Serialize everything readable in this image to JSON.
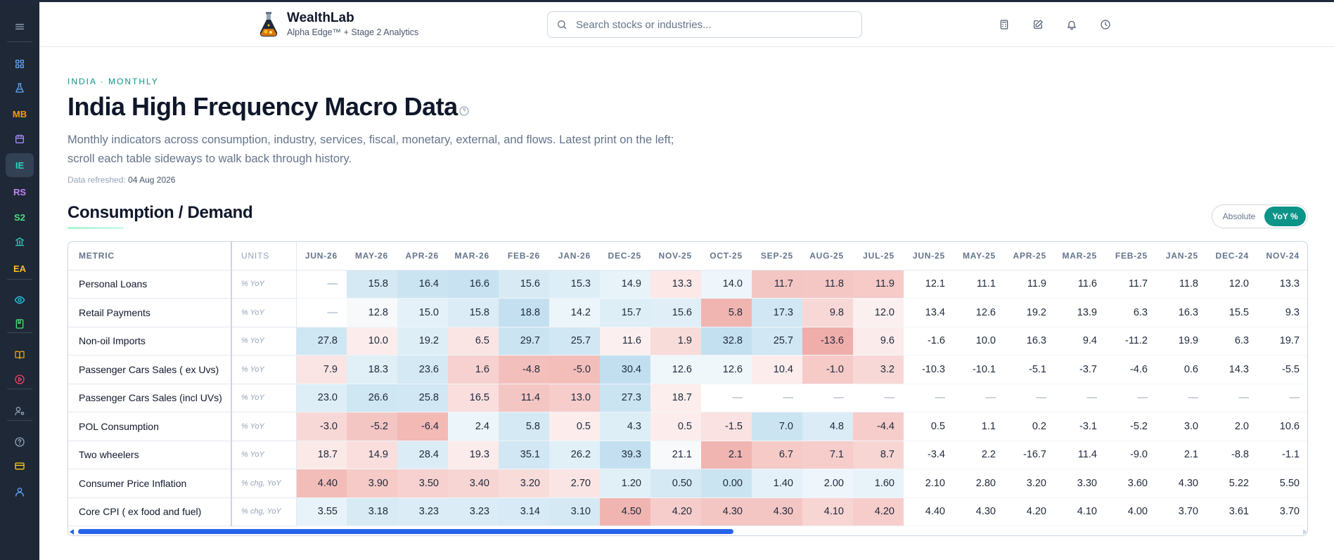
{
  "app": {
    "name": "WealthLab",
    "tagline": "Alpha Edge™ + Stage 2 Analytics"
  },
  "search": {
    "placeholder": "Search stocks or industries..."
  },
  "sidebar": {
    "items": [
      {
        "name": "menu",
        "label": "",
        "icon": "hamburger-icon",
        "color": "#94a3b8"
      },
      {
        "name": "dashboard",
        "label": "",
        "icon": "grid-icon",
        "color": "#60a5fa"
      },
      {
        "name": "lab",
        "label": "",
        "icon": "flask-icon",
        "color": "#60a5fa"
      },
      {
        "name": "mb",
        "label": "MB",
        "color": "#f59e0b"
      },
      {
        "name": "calendar",
        "label": "",
        "icon": "calendar-icon",
        "color": "#a78bfa"
      },
      {
        "name": "ie",
        "label": "IE",
        "color": "#2dd4bf",
        "active": true
      },
      {
        "name": "rs",
        "label": "RS",
        "color": "#c084fc"
      },
      {
        "name": "s2",
        "label": "S2",
        "color": "#4ade80"
      },
      {
        "name": "bank",
        "label": "",
        "icon": "bank-icon",
        "color": "#2dd4bf"
      },
      {
        "name": "ea",
        "label": "EA",
        "color": "#fbbf24"
      },
      {
        "name": "watch",
        "label": "",
        "icon": "eye-icon",
        "color": "#22d3ee"
      },
      {
        "name": "journal",
        "label": "",
        "icon": "book-icon",
        "color": "#4ade80"
      },
      {
        "name": "learn",
        "label": "",
        "icon": "open-book-icon",
        "color": "#f59e0b"
      },
      {
        "name": "video",
        "label": "",
        "icon": "play-circle-icon",
        "color": "#f43f5e"
      },
      {
        "name": "admin",
        "label": "",
        "icon": "user-gear-icon",
        "color": "#94a3b8"
      },
      {
        "name": "help",
        "label": "",
        "icon": "help-circle-icon",
        "color": "#94a3b8"
      },
      {
        "name": "billing",
        "label": "",
        "icon": "card-icon",
        "color": "#facc15"
      },
      {
        "name": "profile",
        "label": "",
        "icon": "user-icon",
        "color": "#60a5fa"
      }
    ]
  },
  "page": {
    "kicker": "INDIA · MONTHLY",
    "title": "India High Frequency Macro Data",
    "description": "Monthly indicators across consumption, industry, services, fiscal, monetary, external, and flows. Latest print on the left; scroll each table sideways to walk back through history.",
    "refreshed_label": "Data refreshed:",
    "refreshed_value": "04 Aug 2026"
  },
  "section": {
    "title": "Consumption / Demand",
    "toggle": {
      "absolute": "Absolute",
      "yoy": "YoY %",
      "selected": "yoy"
    }
  },
  "table": {
    "metric_header": "METRIC",
    "units_header": "UNITS",
    "months": [
      "JUN-26",
      "MAY-26",
      "APR-26",
      "MAR-26",
      "FEB-26",
      "JAN-26",
      "DEC-25",
      "NOV-25",
      "OCT-25",
      "SEP-25",
      "AUG-25",
      "JUL-25",
      "JUN-25",
      "MAY-25",
      "APR-25",
      "MAR-25",
      "FEB-25",
      "JAN-25",
      "DEC-24",
      "NOV-24"
    ],
    "heat_cols": 12,
    "rows": [
      {
        "metric": "Personal Loans",
        "units": "% YoY",
        "values": [
          "—",
          "15.8",
          "16.4",
          "16.6",
          "15.6",
          "15.3",
          "14.9",
          "13.3",
          "14.0",
          "11.7",
          "11.8",
          "11.9",
          "12.1",
          "11.1",
          "11.9",
          "11.6",
          "11.7",
          "11.8",
          "12.0",
          "13.3"
        ],
        "heat": [
          null,
          -0.45,
          -0.6,
          -0.65,
          -0.4,
          -0.3,
          -0.15,
          0.12,
          -0.05,
          0.6,
          0.58,
          0.55
        ]
      },
      {
        "metric": "Retail Payments",
        "units": "% YoY",
        "values": [
          "—",
          "12.8",
          "15.0",
          "15.8",
          "18.8",
          "14.2",
          "15.7",
          "15.6",
          "5.8",
          "17.3",
          "9.8",
          "12.0",
          "13.4",
          "12.6",
          "19.2",
          "13.9",
          "6.3",
          "16.3",
          "15.5",
          "9.3"
        ],
        "heat": [
          null,
          0.0,
          -0.2,
          -0.35,
          -0.7,
          -0.1,
          -0.3,
          -0.28,
          0.85,
          -0.5,
          0.35,
          0.02
        ]
      },
      {
        "metric": "Non-oil Imports",
        "units": "% YoY",
        "values": [
          "27.8",
          "10.0",
          "19.2",
          "6.5",
          "29.7",
          "25.7",
          "11.6",
          "1.9",
          "32.8",
          "25.7",
          "-13.6",
          "9.6",
          "-1.6",
          "10.0",
          "16.3",
          "9.4",
          "-11.2",
          "19.9",
          "6.3",
          "19.7"
        ],
        "heat": [
          -0.55,
          0.05,
          -0.3,
          0.15,
          -0.6,
          -0.5,
          0.02,
          0.3,
          -0.72,
          -0.5,
          0.95,
          0.08
        ]
      },
      {
        "metric": "Passenger Cars Sales ( ex Uvs)",
        "units": "% YoY",
        "values": [
          "7.9",
          "18.3",
          "23.6",
          "1.6",
          "-4.8",
          "-5.0",
          "30.4",
          "12.6",
          "12.6",
          "10.4",
          "-1.0",
          "3.2",
          "-10.3",
          "-10.1",
          "-5.1",
          "-3.7",
          "-4.6",
          "0.6",
          "14.3",
          "-5.5"
        ],
        "heat": [
          0.15,
          -0.25,
          -0.45,
          0.45,
          0.7,
          0.72,
          -0.75,
          -0.03,
          -0.03,
          0.05,
          0.55,
          0.35
        ]
      },
      {
        "metric": "Passenger Cars Sales (incl UVs)",
        "units": "% YoY",
        "values": [
          "23.0",
          "26.6",
          "25.8",
          "16.5",
          "11.4",
          "13.0",
          "27.3",
          "18.7",
          "—",
          "—",
          "—",
          "—",
          "—",
          "—",
          "—",
          "—",
          "—",
          "—",
          "—",
          "—"
        ],
        "heat": [
          -0.3,
          -0.55,
          -0.5,
          0.25,
          0.6,
          0.5,
          -0.6,
          0.03,
          null,
          null,
          null,
          null
        ]
      },
      {
        "metric": "POL Consumption",
        "units": "% YoY",
        "values": [
          "-3.0",
          "-5.2",
          "-6.4",
          "2.4",
          "5.8",
          "0.5",
          "4.3",
          "0.5",
          "-1.5",
          "7.0",
          "4.8",
          "-4.4",
          "0.5",
          "1.1",
          "0.2",
          "-3.1",
          "-5.2",
          "3.0",
          "2.0",
          "10.6"
        ],
        "heat": [
          0.35,
          0.6,
          0.8,
          -0.1,
          -0.45,
          0.05,
          -0.3,
          0.05,
          0.2,
          -0.6,
          -0.35,
          0.5
        ]
      },
      {
        "metric": "Two wheelers",
        "units": "% YoY",
        "values": [
          "18.7",
          "14.9",
          "28.4",
          "19.3",
          "35.1",
          "26.2",
          "39.3",
          "21.1",
          "2.1",
          "6.7",
          "7.1",
          "8.7",
          "-3.4",
          "2.2",
          "-16.7",
          "11.4",
          "-9.0",
          "2.1",
          "-8.8",
          "-1.1"
        ],
        "heat": [
          0.1,
          0.25,
          -0.35,
          0.08,
          -0.5,
          -0.25,
          -0.7,
          0.0,
          0.85,
          0.55,
          0.5,
          0.4
        ]
      },
      {
        "metric": "Consumer Price Inflation",
        "units": "% chg, YoY",
        "values": [
          "4.40",
          "3.90",
          "3.50",
          "3.40",
          "3.20",
          "2.70",
          "1.20",
          "0.50",
          "0.00",
          "1.40",
          "2.00",
          "1.60",
          "2.10",
          "2.80",
          "3.20",
          "3.30",
          "3.60",
          "4.30",
          "5.22",
          "5.50"
        ],
        "heat": [
          0.75,
          0.55,
          0.45,
          0.4,
          0.3,
          0.15,
          -0.25,
          -0.45,
          -0.6,
          -0.2,
          -0.05,
          -0.15
        ]
      },
      {
        "metric": "Core CPI ( ex food and fuel)",
        "units": "% chg, YoY",
        "values": [
          "3.55",
          "3.18",
          "3.23",
          "3.23",
          "3.14",
          "3.10",
          "4.50",
          "4.20",
          "4.30",
          "4.30",
          "4.10",
          "4.20",
          "4.40",
          "4.30",
          "4.20",
          "4.10",
          "4.00",
          "3.70",
          "3.61",
          "3.70"
        ],
        "heat": [
          -0.15,
          -0.4,
          -0.35,
          -0.35,
          -0.42,
          -0.45,
          0.85,
          0.5,
          0.6,
          0.6,
          0.4,
          0.5
        ]
      }
    ]
  }
}
